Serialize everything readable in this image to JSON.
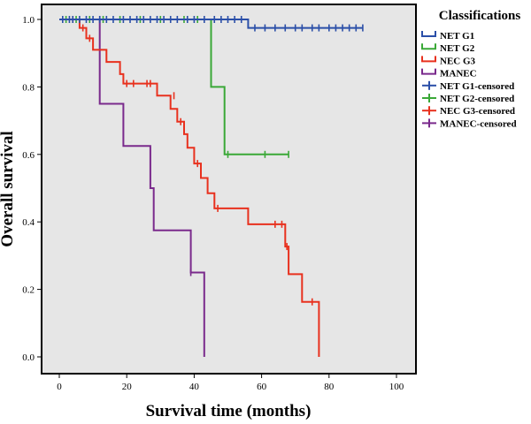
{
  "chart_data": {
    "type": "line",
    "subtype": "kaplan-meier-step",
    "title": "",
    "xlabel": "Survival time (months)",
    "ylabel": "Overall survival",
    "xlim": [
      0,
      100
    ],
    "ylim": [
      0,
      1
    ],
    "x_ticks": [
      0,
      20,
      40,
      60,
      80,
      100
    ],
    "y_ticks": [
      0.0,
      0.2,
      0.4,
      0.6,
      0.8,
      1.0
    ],
    "y_tick_labels": [
      "0.0",
      "0.2",
      "0.4",
      "0.6",
      "0.8",
      "1.0"
    ],
    "grid": false,
    "legend_title": "Classifications",
    "legend_position": "right, outside plot",
    "series": [
      {
        "name": "NET G1",
        "censored_label": "NET G1-censored",
        "color": "#2b4fa8",
        "steps": [
          [
            0,
            1.0
          ],
          [
            56,
            1.0
          ],
          [
            56,
            0.975
          ],
          [
            90,
            0.975
          ]
        ],
        "censored": [
          [
            1,
            1.0
          ],
          [
            3,
            1.0
          ],
          [
            4,
            1.0
          ],
          [
            6,
            1.0
          ],
          [
            8,
            1.0
          ],
          [
            10,
            1.0
          ],
          [
            12,
            1.0
          ],
          [
            14,
            1.0
          ],
          [
            16,
            1.0
          ],
          [
            19,
            1.0
          ],
          [
            21,
            1.0
          ],
          [
            23,
            1.0
          ],
          [
            25,
            1.0
          ],
          [
            27,
            1.0
          ],
          [
            29,
            1.0
          ],
          [
            31,
            1.0
          ],
          [
            33,
            1.0
          ],
          [
            35,
            1.0
          ],
          [
            38,
            1.0
          ],
          [
            40,
            1.0
          ],
          [
            43,
            1.0
          ],
          [
            46,
            1.0
          ],
          [
            48,
            1.0
          ],
          [
            50,
            1.0
          ],
          [
            52,
            1.0
          ],
          [
            54,
            1.0
          ],
          [
            58,
            0.975
          ],
          [
            61,
            0.975
          ],
          [
            64,
            0.975
          ],
          [
            67,
            0.975
          ],
          [
            70,
            0.975
          ],
          [
            72,
            0.975
          ],
          [
            75,
            0.975
          ],
          [
            77,
            0.975
          ],
          [
            80,
            0.975
          ],
          [
            82,
            0.975
          ],
          [
            84,
            0.975
          ],
          [
            86,
            0.975
          ],
          [
            88,
            0.975
          ],
          [
            90,
            0.975
          ]
        ]
      },
      {
        "name": "NET G2",
        "censored_label": "NET G2-censored",
        "color": "#3aa837",
        "steps": [
          [
            0,
            1.0
          ],
          [
            45,
            1.0
          ],
          [
            45,
            0.8
          ],
          [
            49,
            0.8
          ],
          [
            49,
            0.6
          ],
          [
            68,
            0.6
          ]
        ],
        "censored": [
          [
            2,
            1.0
          ],
          [
            5,
            1.0
          ],
          [
            9,
            1.0
          ],
          [
            13,
            1.0
          ],
          [
            18,
            1.0
          ],
          [
            24,
            1.0
          ],
          [
            30,
            1.0
          ],
          [
            37,
            1.0
          ],
          [
            41,
            1.0
          ],
          [
            50,
            0.6
          ],
          [
            61,
            0.6
          ],
          [
            68,
            0.6
          ]
        ]
      },
      {
        "name": "NEC G3",
        "censored_label": "NEC G3-censored",
        "color": "#e8311e",
        "steps": [
          [
            0,
            1.0
          ],
          [
            6,
            1.0
          ],
          [
            6,
            0.975
          ],
          [
            8,
            0.975
          ],
          [
            8,
            0.944
          ],
          [
            10,
            0.944
          ],
          [
            10,
            0.91
          ],
          [
            14,
            0.91
          ],
          [
            14,
            0.874
          ],
          [
            18,
            0.874
          ],
          [
            18,
            0.838
          ],
          [
            19,
            0.838
          ],
          [
            19,
            0.81
          ],
          [
            29,
            0.81
          ],
          [
            29,
            0.774
          ],
          [
            33,
            0.774
          ],
          [
            33,
            0.735
          ],
          [
            35,
            0.735
          ],
          [
            35,
            0.697
          ],
          [
            37,
            0.697
          ],
          [
            37,
            0.66
          ],
          [
            38,
            0.66
          ],
          [
            38,
            0.62
          ],
          [
            40,
            0.62
          ],
          [
            40,
            0.573
          ],
          [
            42,
            0.573
          ],
          [
            42,
            0.53
          ],
          [
            44,
            0.53
          ],
          [
            44,
            0.485
          ],
          [
            46,
            0.485
          ],
          [
            46,
            0.44
          ],
          [
            56,
            0.44
          ],
          [
            56,
            0.393
          ],
          [
            67,
            0.393
          ],
          [
            67,
            0.327
          ],
          [
            68,
            0.327
          ],
          [
            68,
            0.245
          ],
          [
            72,
            0.245
          ],
          [
            72,
            0.163
          ],
          [
            77,
            0.163
          ],
          [
            77,
            0.0
          ]
        ],
        "censored": [
          [
            4,
            1.0
          ],
          [
            7,
            0.975
          ],
          [
            9,
            0.944
          ],
          [
            20,
            0.81
          ],
          [
            22,
            0.81
          ],
          [
            26,
            0.81
          ],
          [
            27,
            0.81
          ],
          [
            34,
            0.774
          ],
          [
            36,
            0.697
          ],
          [
            41,
            0.573
          ],
          [
            47,
            0.44
          ],
          [
            64,
            0.393
          ],
          [
            66,
            0.393
          ],
          [
            67.5,
            0.327
          ],
          [
            75,
            0.163
          ]
        ]
      },
      {
        "name": "MANEC",
        "censored_label": "MANEC-censored",
        "color": "#7a2a8c",
        "steps": [
          [
            0,
            1.0
          ],
          [
            12,
            1.0
          ],
          [
            12,
            0.75
          ],
          [
            19,
            0.75
          ],
          [
            19,
            0.625
          ],
          [
            27,
            0.625
          ],
          [
            27,
            0.5
          ],
          [
            28,
            0.5
          ],
          [
            28,
            0.375
          ],
          [
            39,
            0.375
          ],
          [
            39,
            0.25
          ],
          [
            43,
            0.25
          ],
          [
            43,
            0.0
          ]
        ],
        "censored": [
          [
            12,
            1.0
          ],
          [
            39,
            0.25
          ]
        ]
      }
    ]
  }
}
